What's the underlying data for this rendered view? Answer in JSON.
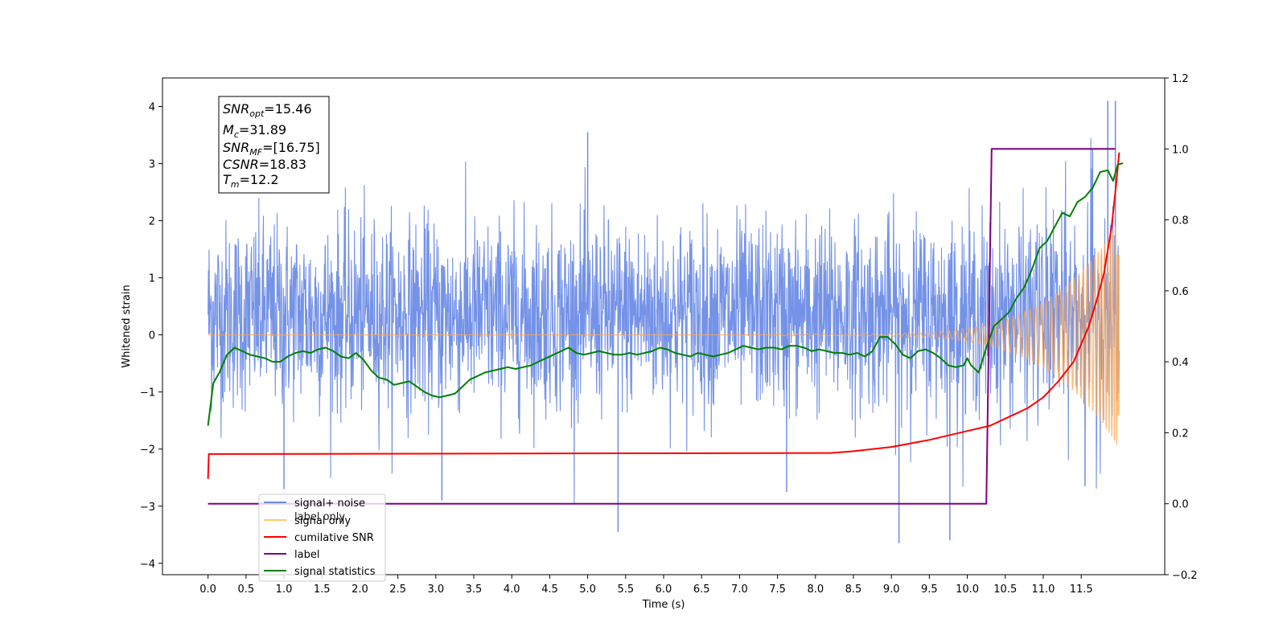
{
  "chart_data": {
    "type": "line",
    "xlabel": "Time (s)",
    "ylabel": "Whitened strain",
    "xlim": [
      -0.6,
      12.6
    ],
    "ylim": [
      -4.2,
      4.5
    ],
    "y2lim": [
      -0.2,
      1.2
    ],
    "x_ticks": [
      "0.0",
      "0.5",
      "1.0",
      "1.5",
      "2.0",
      "2.5",
      "3.0",
      "3.5",
      "4.0",
      "4.5",
      "5.0",
      "5.5",
      "6.0",
      "6.5",
      "7.0",
      "7.5",
      "8.0",
      "8.5",
      "9.0",
      "9.5",
      "10.0",
      "10.5",
      "11.0",
      "11.5"
    ],
    "y_ticks": [
      "4",
      "3",
      "2",
      "1",
      "0",
      "−1",
      "−2",
      "−3",
      "−4"
    ],
    "y2_ticks": [
      "1.2",
      "1.0",
      "0.8",
      "0.6",
      "0.4",
      "0.2",
      "0.0",
      "−0.2"
    ],
    "annotation": {
      "snr_opt": {
        "base": "SNR",
        "sub": "opt",
        "value": "=15.46"
      },
      "mc": {
        "base": "M",
        "sub": "c",
        "value": "=31.89"
      },
      "snr_mf": {
        "base": "SNR",
        "sub": "MF",
        "value": "=[16.75]"
      },
      "csnr": {
        "base": "CSNR",
        "sub": "",
        "value": "=18.83"
      },
      "tm": {
        "base": "T",
        "sub": "m",
        "value": "=12.2"
      }
    },
    "legend": {
      "placement": "lower-left",
      "entries": [
        {
          "label": "signal+ noise",
          "color": "#6d8ce6"
        },
        {
          "label": "signal only",
          "color": "#ffc966"
        },
        {
          "label": "cumilative SNR",
          "color": "#ff0000"
        },
        {
          "label": "label",
          "color": "#800080"
        },
        {
          "label": "signal statistics",
          "color": "#008000"
        }
      ],
      "hidden_labels": [
        "label only"
      ]
    },
    "series": [
      {
        "name": "signal+ noise",
        "axis": "left",
        "color": "#6d8ce6",
        "x_range": [
          0.0,
          12.0
        ],
        "baseline": 0.35,
        "spread": 1.0,
        "max_peaks": [
          [
            5.0,
            3.55
          ],
          [
            11.85,
            4.1
          ],
          [
            11.95,
            4.1
          ],
          [
            11.65,
            3.25
          ]
        ],
        "min_dips": [
          [
            5.4,
            -3.45
          ],
          [
            9.1,
            -3.65
          ],
          [
            9.77,
            -3.6
          ],
          [
            3.08,
            -2.9
          ],
          [
            1.0,
            -2.7
          ],
          [
            7.62,
            -2.75
          ],
          [
            11.55,
            -2.65
          ]
        ]
      },
      {
        "name": "signal only",
        "axis": "left",
        "color": "#ffa64d",
        "x_range": [
          0.0,
          12.0
        ],
        "chirp": {
          "start_s": 7.5,
          "end_s": 12.0,
          "max_amplitude": 2.0,
          "final_amplitude": 1.4
        }
      },
      {
        "name": "cumilative SNR",
        "axis": "right",
        "color": "#ff0000",
        "points": [
          [
            0.0,
            0.07
          ],
          [
            0.01,
            0.14
          ],
          [
            8.2,
            0.143
          ],
          [
            8.5,
            0.148
          ],
          [
            9.0,
            0.16
          ],
          [
            9.5,
            0.18
          ],
          [
            10.0,
            0.205
          ],
          [
            10.3,
            0.22
          ],
          [
            10.5,
            0.24
          ],
          [
            10.8,
            0.27
          ],
          [
            11.0,
            0.3
          ],
          [
            11.2,
            0.345
          ],
          [
            11.4,
            0.4
          ],
          [
            11.6,
            0.5
          ],
          [
            11.7,
            0.57
          ],
          [
            11.8,
            0.65
          ],
          [
            11.9,
            0.78
          ],
          [
            11.96,
            0.9
          ],
          [
            12.0,
            0.99
          ]
        ]
      },
      {
        "name": "label",
        "axis": "right",
        "color": "#800080",
        "points": [
          [
            0.0,
            0.0
          ],
          [
            10.25,
            0.0
          ],
          [
            10.32,
            1.0
          ],
          [
            11.95,
            1.0
          ]
        ]
      },
      {
        "name": "signal statistics",
        "axis": "right",
        "color": "#008000",
        "points": [
          [
            0.0,
            0.22
          ],
          [
            0.07,
            0.34
          ],
          [
            0.15,
            0.37
          ],
          [
            0.25,
            0.42
          ],
          [
            0.35,
            0.44
          ],
          [
            0.45,
            0.43
          ],
          [
            0.55,
            0.42
          ],
          [
            0.65,
            0.415
          ],
          [
            0.75,
            0.41
          ],
          [
            0.85,
            0.4
          ],
          [
            0.95,
            0.4
          ],
          [
            1.05,
            0.415
          ],
          [
            1.15,
            0.425
          ],
          [
            1.25,
            0.43
          ],
          [
            1.35,
            0.425
          ],
          [
            1.45,
            0.435
          ],
          [
            1.55,
            0.44
          ],
          [
            1.65,
            0.43
          ],
          [
            1.75,
            0.415
          ],
          [
            1.85,
            0.41
          ],
          [
            1.95,
            0.425
          ],
          [
            2.05,
            0.405
          ],
          [
            2.15,
            0.375
          ],
          [
            2.25,
            0.355
          ],
          [
            2.35,
            0.35
          ],
          [
            2.45,
            0.335
          ],
          [
            2.55,
            0.34
          ],
          [
            2.65,
            0.345
          ],
          [
            2.75,
            0.33
          ],
          [
            2.85,
            0.315
          ],
          [
            2.95,
            0.305
          ],
          [
            3.05,
            0.3
          ],
          [
            3.15,
            0.305
          ],
          [
            3.25,
            0.31
          ],
          [
            3.35,
            0.33
          ],
          [
            3.45,
            0.35
          ],
          [
            3.55,
            0.36
          ],
          [
            3.65,
            0.37
          ],
          [
            3.75,
            0.375
          ],
          [
            3.85,
            0.38
          ],
          [
            3.95,
            0.385
          ],
          [
            4.05,
            0.38
          ],
          [
            4.15,
            0.385
          ],
          [
            4.25,
            0.39
          ],
          [
            4.35,
            0.4
          ],
          [
            4.45,
            0.41
          ],
          [
            4.55,
            0.42
          ],
          [
            4.65,
            0.43
          ],
          [
            4.75,
            0.44
          ],
          [
            4.85,
            0.425
          ],
          [
            4.95,
            0.42
          ],
          [
            5.05,
            0.425
          ],
          [
            5.15,
            0.43
          ],
          [
            5.25,
            0.425
          ],
          [
            5.35,
            0.42
          ],
          [
            5.45,
            0.42
          ],
          [
            5.55,
            0.425
          ],
          [
            5.65,
            0.42
          ],
          [
            5.75,
            0.425
          ],
          [
            5.85,
            0.43
          ],
          [
            5.95,
            0.44
          ],
          [
            6.05,
            0.435
          ],
          [
            6.15,
            0.425
          ],
          [
            6.25,
            0.42
          ],
          [
            6.35,
            0.415
          ],
          [
            6.45,
            0.425
          ],
          [
            6.55,
            0.42
          ],
          [
            6.65,
            0.415
          ],
          [
            6.75,
            0.42
          ],
          [
            6.85,
            0.425
          ],
          [
            6.95,
            0.435
          ],
          [
            7.05,
            0.445
          ],
          [
            7.15,
            0.44
          ],
          [
            7.25,
            0.435
          ],
          [
            7.35,
            0.44
          ],
          [
            7.45,
            0.44
          ],
          [
            7.55,
            0.435
          ],
          [
            7.65,
            0.445
          ],
          [
            7.75,
            0.445
          ],
          [
            7.85,
            0.44
          ],
          [
            7.95,
            0.43
          ],
          [
            8.05,
            0.435
          ],
          [
            8.15,
            0.43
          ],
          [
            8.25,
            0.425
          ],
          [
            8.35,
            0.425
          ],
          [
            8.45,
            0.42
          ],
          [
            8.55,
            0.425
          ],
          [
            8.65,
            0.415
          ],
          [
            8.75,
            0.43
          ],
          [
            8.85,
            0.47
          ],
          [
            8.95,
            0.47
          ],
          [
            9.05,
            0.45
          ],
          [
            9.15,
            0.42
          ],
          [
            9.25,
            0.41
          ],
          [
            9.35,
            0.43
          ],
          [
            9.45,
            0.435
          ],
          [
            9.55,
            0.425
          ],
          [
            9.65,
            0.41
          ],
          [
            9.75,
            0.39
          ],
          [
            9.85,
            0.385
          ],
          [
            9.95,
            0.39
          ],
          [
            10.0,
            0.41
          ],
          [
            10.05,
            0.39
          ],
          [
            10.15,
            0.37
          ],
          [
            10.25,
            0.44
          ],
          [
            10.35,
            0.5
          ],
          [
            10.45,
            0.52
          ],
          [
            10.55,
            0.54
          ],
          [
            10.65,
            0.58
          ],
          [
            10.75,
            0.61
          ],
          [
            10.85,
            0.66
          ],
          [
            10.95,
            0.72
          ],
          [
            11.05,
            0.74
          ],
          [
            11.15,
            0.78
          ],
          [
            11.25,
            0.82
          ],
          [
            11.35,
            0.81
          ],
          [
            11.45,
            0.85
          ],
          [
            11.55,
            0.865
          ],
          [
            11.65,
            0.89
          ],
          [
            11.75,
            0.935
          ],
          [
            11.85,
            0.94
          ],
          [
            11.92,
            0.91
          ],
          [
            11.98,
            0.955
          ],
          [
            12.05,
            0.96
          ]
        ]
      }
    ]
  }
}
